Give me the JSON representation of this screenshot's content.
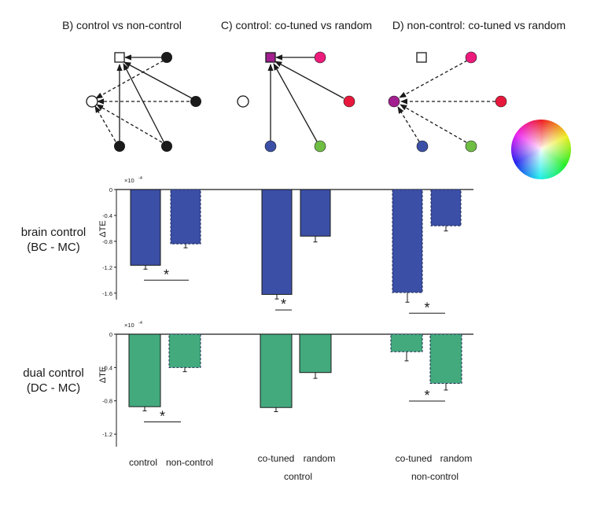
{
  "panels": {
    "B": "B) control vs non-control",
    "C": "C) control: co-tuned vs random",
    "D": "D) non-control: co-tuned vs random"
  },
  "colors": {
    "blue": "#3b4fa6",
    "green": "#43aa7e",
    "magenta": "#a11f8f",
    "pink": "#ec1a7b",
    "red": "#e8183c",
    "node_blue": "#3b4fa6",
    "node_green": "#6fbe44",
    "black": "#1a1a1a"
  },
  "color_wheel": {
    "icon": "color-wheel-icon"
  },
  "row_labels": {
    "bc_line1": "brain control",
    "bc_line2": "(BC - MC)",
    "dc_line1": "dual control",
    "dc_line2": "(DC - MC)"
  },
  "x_labels": {
    "control": "control",
    "non_control": "non-control",
    "co_tuned_1": "co-tuned",
    "random_1": "random",
    "group_control": "control",
    "co_tuned_2": "co-tuned",
    "random_2": "random",
    "group_non_control": "non-control"
  },
  "significance_mark": "*",
  "chart_data": [
    {
      "type": "bar",
      "ylabel": "ΔTE",
      "scale_label": "×10",
      "scale_exp": "-4",
      "ylim": [
        -1.7,
        0
      ],
      "yticks": [
        0,
        -0.4,
        -0.8,
        -1.2,
        -1.6
      ],
      "ytick_labels": [
        "0",
        "-0.4",
        "-0.8",
        "-1.2",
        "-1.6"
      ],
      "color": "#3b4fa6",
      "categories": [
        "control",
        "non-control",
        "co-tuned (control)",
        "random (control)",
        "co-tuned (non-control)",
        "random (non-control)"
      ],
      "values": [
        -1.17,
        -0.84,
        -1.62,
        -0.72,
        -1.59,
        -0.56
      ],
      "errors": [
        0.06,
        0.06,
        0.07,
        0.09,
        0.15,
        0.08
      ],
      "dashed": [
        false,
        true,
        false,
        false,
        true,
        true
      ],
      "significance": [
        [
          0,
          1
        ],
        [
          2,
          3
        ],
        [
          4,
          5
        ]
      ]
    },
    {
      "type": "bar",
      "ylabel": "ΔTE",
      "scale_label": "×10",
      "scale_exp": "-4",
      "ylim": [
        -1.35,
        0
      ],
      "yticks": [
        0,
        -0.4,
        -0.8,
        -1.2
      ],
      "ytick_labels": [
        "0",
        "-0.4",
        "-0.8",
        "-1.2"
      ],
      "color": "#43aa7e",
      "categories": [
        "control",
        "non-control",
        "co-tuned (control)",
        "random (control)",
        "co-tuned (non-control)",
        "random (non-control)"
      ],
      "values": [
        -0.87,
        -0.4,
        -0.88,
        -0.46,
        -0.21,
        -0.59
      ],
      "errors": [
        0.05,
        0.05,
        0.05,
        0.07,
        0.11,
        0.08
      ],
      "dashed": [
        false,
        true,
        false,
        false,
        true,
        true
      ],
      "significance": [
        [
          0,
          1
        ],
        [
          4,
          5
        ]
      ]
    }
  ]
}
